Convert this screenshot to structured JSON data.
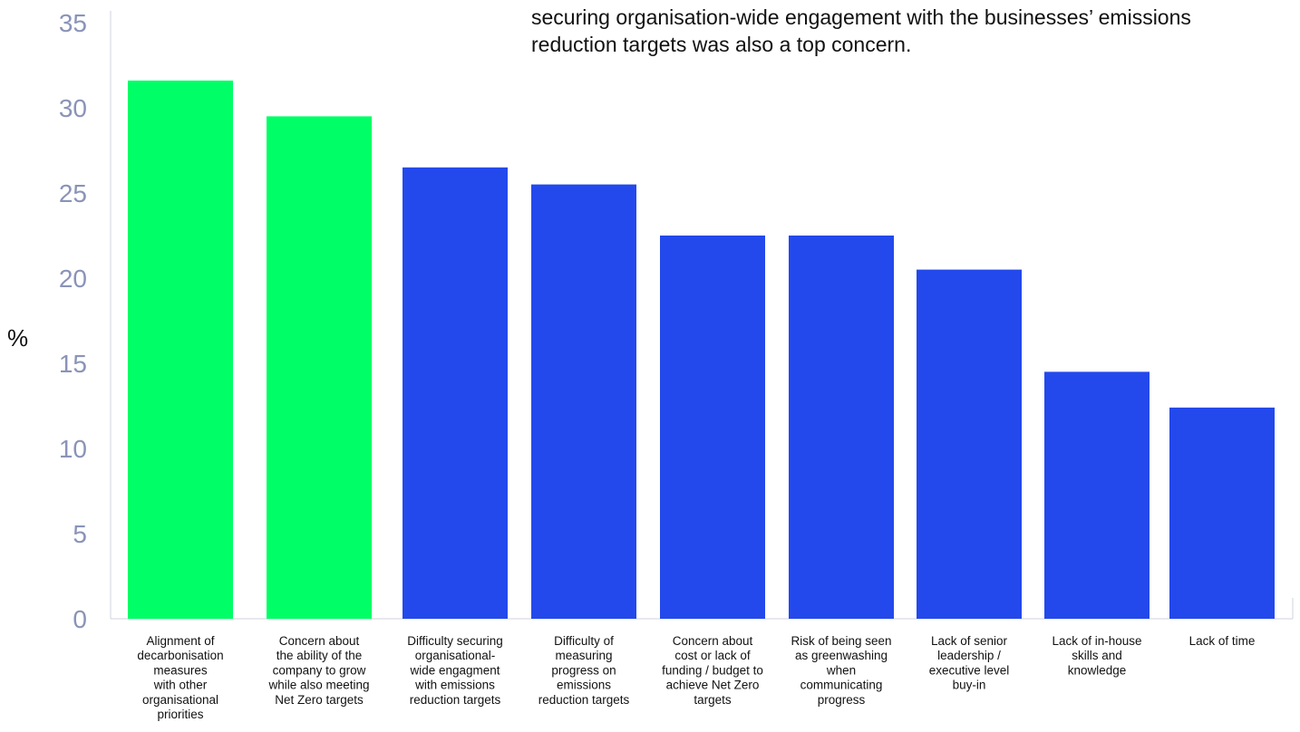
{
  "intro_text": "securing organisation-wide engagement with the businesses’ emissions\nreduction targets was also a top concern.",
  "colors": {
    "highlight": "#00ff66",
    "primary": "#2349ec",
    "axis": "#cfd3dd",
    "tick_text": "#8a93b8"
  },
  "chart_data": {
    "type": "bar",
    "title": "",
    "xlabel": "",
    "ylabel": "%",
    "ylim": [
      0,
      35
    ],
    "yticks": [
      0,
      5,
      10,
      15,
      20,
      25,
      30,
      35
    ],
    "grid": false,
    "categories": [
      "Alignment of decarbonisation measures with other organisational priorities",
      "Concern about the ability of the company to grow while also meeting Net Zero targets",
      "Difficulty securing organisational-wide engagment with emissions reduction targets",
      "Difficulty of measuring progress on emissions reduction targets",
      "Concern about cost or lack of funding / budget to achieve Net Zero targets",
      "Risk of being seen as greenwashing when communicating progress",
      "Lack of senior leadership / executive level buy-in",
      "Lack of in-house skills and knowledge",
      "Lack of time"
    ],
    "category_lines": [
      [
        "Alignment of",
        "decarbonisation",
        "measures",
        "with other",
        "organisational",
        "priorities"
      ],
      [
        "Concern about",
        "the ability of the",
        "company to grow",
        "while also meeting",
        "Net Zero targets"
      ],
      [
        "Difficulty securing",
        "organisational-",
        "wide engagment",
        "with emissions",
        "reduction targets"
      ],
      [
        "Difficulty of",
        "measuring",
        "progress on",
        "emissions",
        "reduction targets"
      ],
      [
        "Concern about",
        "cost or lack of",
        "funding / budget to",
        "achieve Net Zero",
        "targets"
      ],
      [
        "Risk of being seen",
        "as greenwashing",
        "when",
        "communicating",
        "progress"
      ],
      [
        "Lack of senior",
        "leadership /",
        "executive level",
        "buy-in"
      ],
      [
        "Lack of in-house",
        "skills and",
        "knowledge"
      ],
      [
        "Lack of time"
      ]
    ],
    "values": [
      31.6,
      29.5,
      26.5,
      25.5,
      22.5,
      22.5,
      20.5,
      14.5,
      12.4
    ],
    "highlighted": [
      true,
      true,
      false,
      false,
      false,
      false,
      false,
      false,
      false
    ]
  }
}
